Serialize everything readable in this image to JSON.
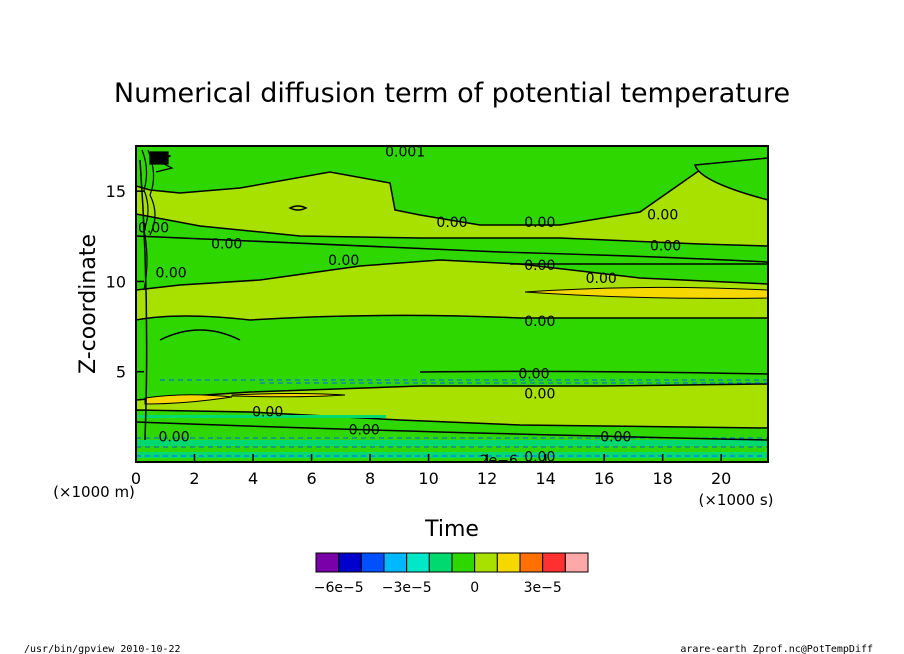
{
  "chart_data": {
    "type": "heatmap",
    "title": "Numerical diffusion term of potential temperature",
    "xlabel": "Time",
    "ylabel": "Z-coordinate",
    "x_unit": "(×1000 s)",
    "y_unit": "(×1000 m)",
    "xlim": [
      0,
      21.6
    ],
    "ylim": [
      0,
      17.5
    ],
    "x_ticks": [
      0,
      2,
      4,
      6,
      8,
      10,
      12,
      14,
      16,
      18,
      20
    ],
    "y_ticks": [
      5,
      10,
      15
    ],
    "x_tick_labels": [
      "0",
      "2",
      "4",
      "6",
      "8",
      "10",
      "12",
      "14",
      "16",
      "18",
      "20"
    ],
    "y_tick_labels": [
      "5",
      "10",
      "15"
    ],
    "colorbar": {
      "colors": [
        "#7a00aa",
        "#0000cc",
        "#0050ff",
        "#00b8ff",
        "#00e8c8",
        "#00d870",
        "#2ed700",
        "#a8e000",
        "#f6d800",
        "#ff7000",
        "#ff3030",
        "#ffa8a8"
      ],
      "tick_labels": [
        "−6e−5",
        "−3e−5",
        "0",
        "3e−5"
      ],
      "tick_values": [
        -6e-05,
        -3e-05,
        0,
        3e-05
      ]
    },
    "contour_labels": [
      {
        "text": "0.00",
        "x": 0.6,
        "y": 13.0
      },
      {
        "text": "0.00",
        "x": 1.2,
        "y": 10.5
      },
      {
        "text": "0.00",
        "x": 3.1,
        "y": 12.1
      },
      {
        "text": "0.00",
        "x": 7.1,
        "y": 11.2
      },
      {
        "text": "0.00",
        "x": 10.8,
        "y": 13.3
      },
      {
        "text": "0.00",
        "x": 13.8,
        "y": 13.3
      },
      {
        "text": "0.00",
        "x": 18.0,
        "y": 13.7
      },
      {
        "text": "0.00",
        "x": 18.1,
        "y": 12.0
      },
      {
        "text": "0.00",
        "x": 13.8,
        "y": 10.9
      },
      {
        "text": "0.00",
        "x": 15.9,
        "y": 10.2
      },
      {
        "text": "0.00",
        "x": 13.8,
        "y": 7.8
      },
      {
        "text": "0.00",
        "x": 13.6,
        "y": 4.9
      },
      {
        "text": "0.00",
        "x": 13.8,
        "y": 3.8
      },
      {
        "text": "0.00",
        "x": 4.5,
        "y": 2.8
      },
      {
        "text": "0.00",
        "x": 7.8,
        "y": 1.8
      },
      {
        "text": "0.00",
        "x": 1.3,
        "y": 1.4
      },
      {
        "text": "0.00",
        "x": 16.4,
        "y": 1.4
      },
      {
        "text": "0.00",
        "x": 13.8,
        "y": 0.3
      },
      {
        "text": "0.001",
        "x": 9.2,
        "y": 17.2
      },
      {
        "text": "2e−6",
        "x": 12.4,
        "y": 0.1
      }
    ]
  },
  "footer": {
    "left": "/usr/bin/gpview  2010-10-22",
    "right": "arare-earth_Zprof.nc@PotTempDiff"
  }
}
